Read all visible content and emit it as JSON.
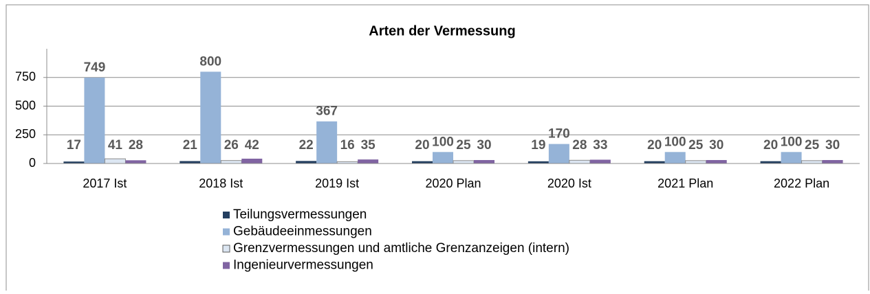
{
  "chart_data": {
    "type": "bar",
    "title": "Arten der Vermessung",
    "categories": [
      "2017 Ist",
      "2018 Ist",
      "2019 Ist",
      "2020 Plan",
      "2020 Ist",
      "2021 Plan",
      "2022 Plan"
    ],
    "series": [
      {
        "name": "Teilungsvermessungen",
        "color": "#243f60",
        "values": [
          17,
          21,
          22,
          20,
          19,
          20,
          20
        ]
      },
      {
        "name": "Gebäudeeinmessungen",
        "color": "#95b3d7",
        "values": [
          749,
          800,
          367,
          100,
          170,
          100,
          100
        ]
      },
      {
        "name": "Grenzvermessungen und amtliche Grenzanzeigen (intern)",
        "color": "#dce6f2",
        "values": [
          41,
          26,
          16,
          25,
          28,
          25,
          25
        ]
      },
      {
        "name": "Ingenieurvermessungen",
        "color": "#8064a2",
        "values": [
          28,
          42,
          35,
          30,
          33,
          30,
          30
        ]
      }
    ],
    "ylim": [
      0,
      1000
    ],
    "yticks": [
      0,
      250,
      500,
      750
    ],
    "grid": true,
    "legend": "bottom"
  }
}
